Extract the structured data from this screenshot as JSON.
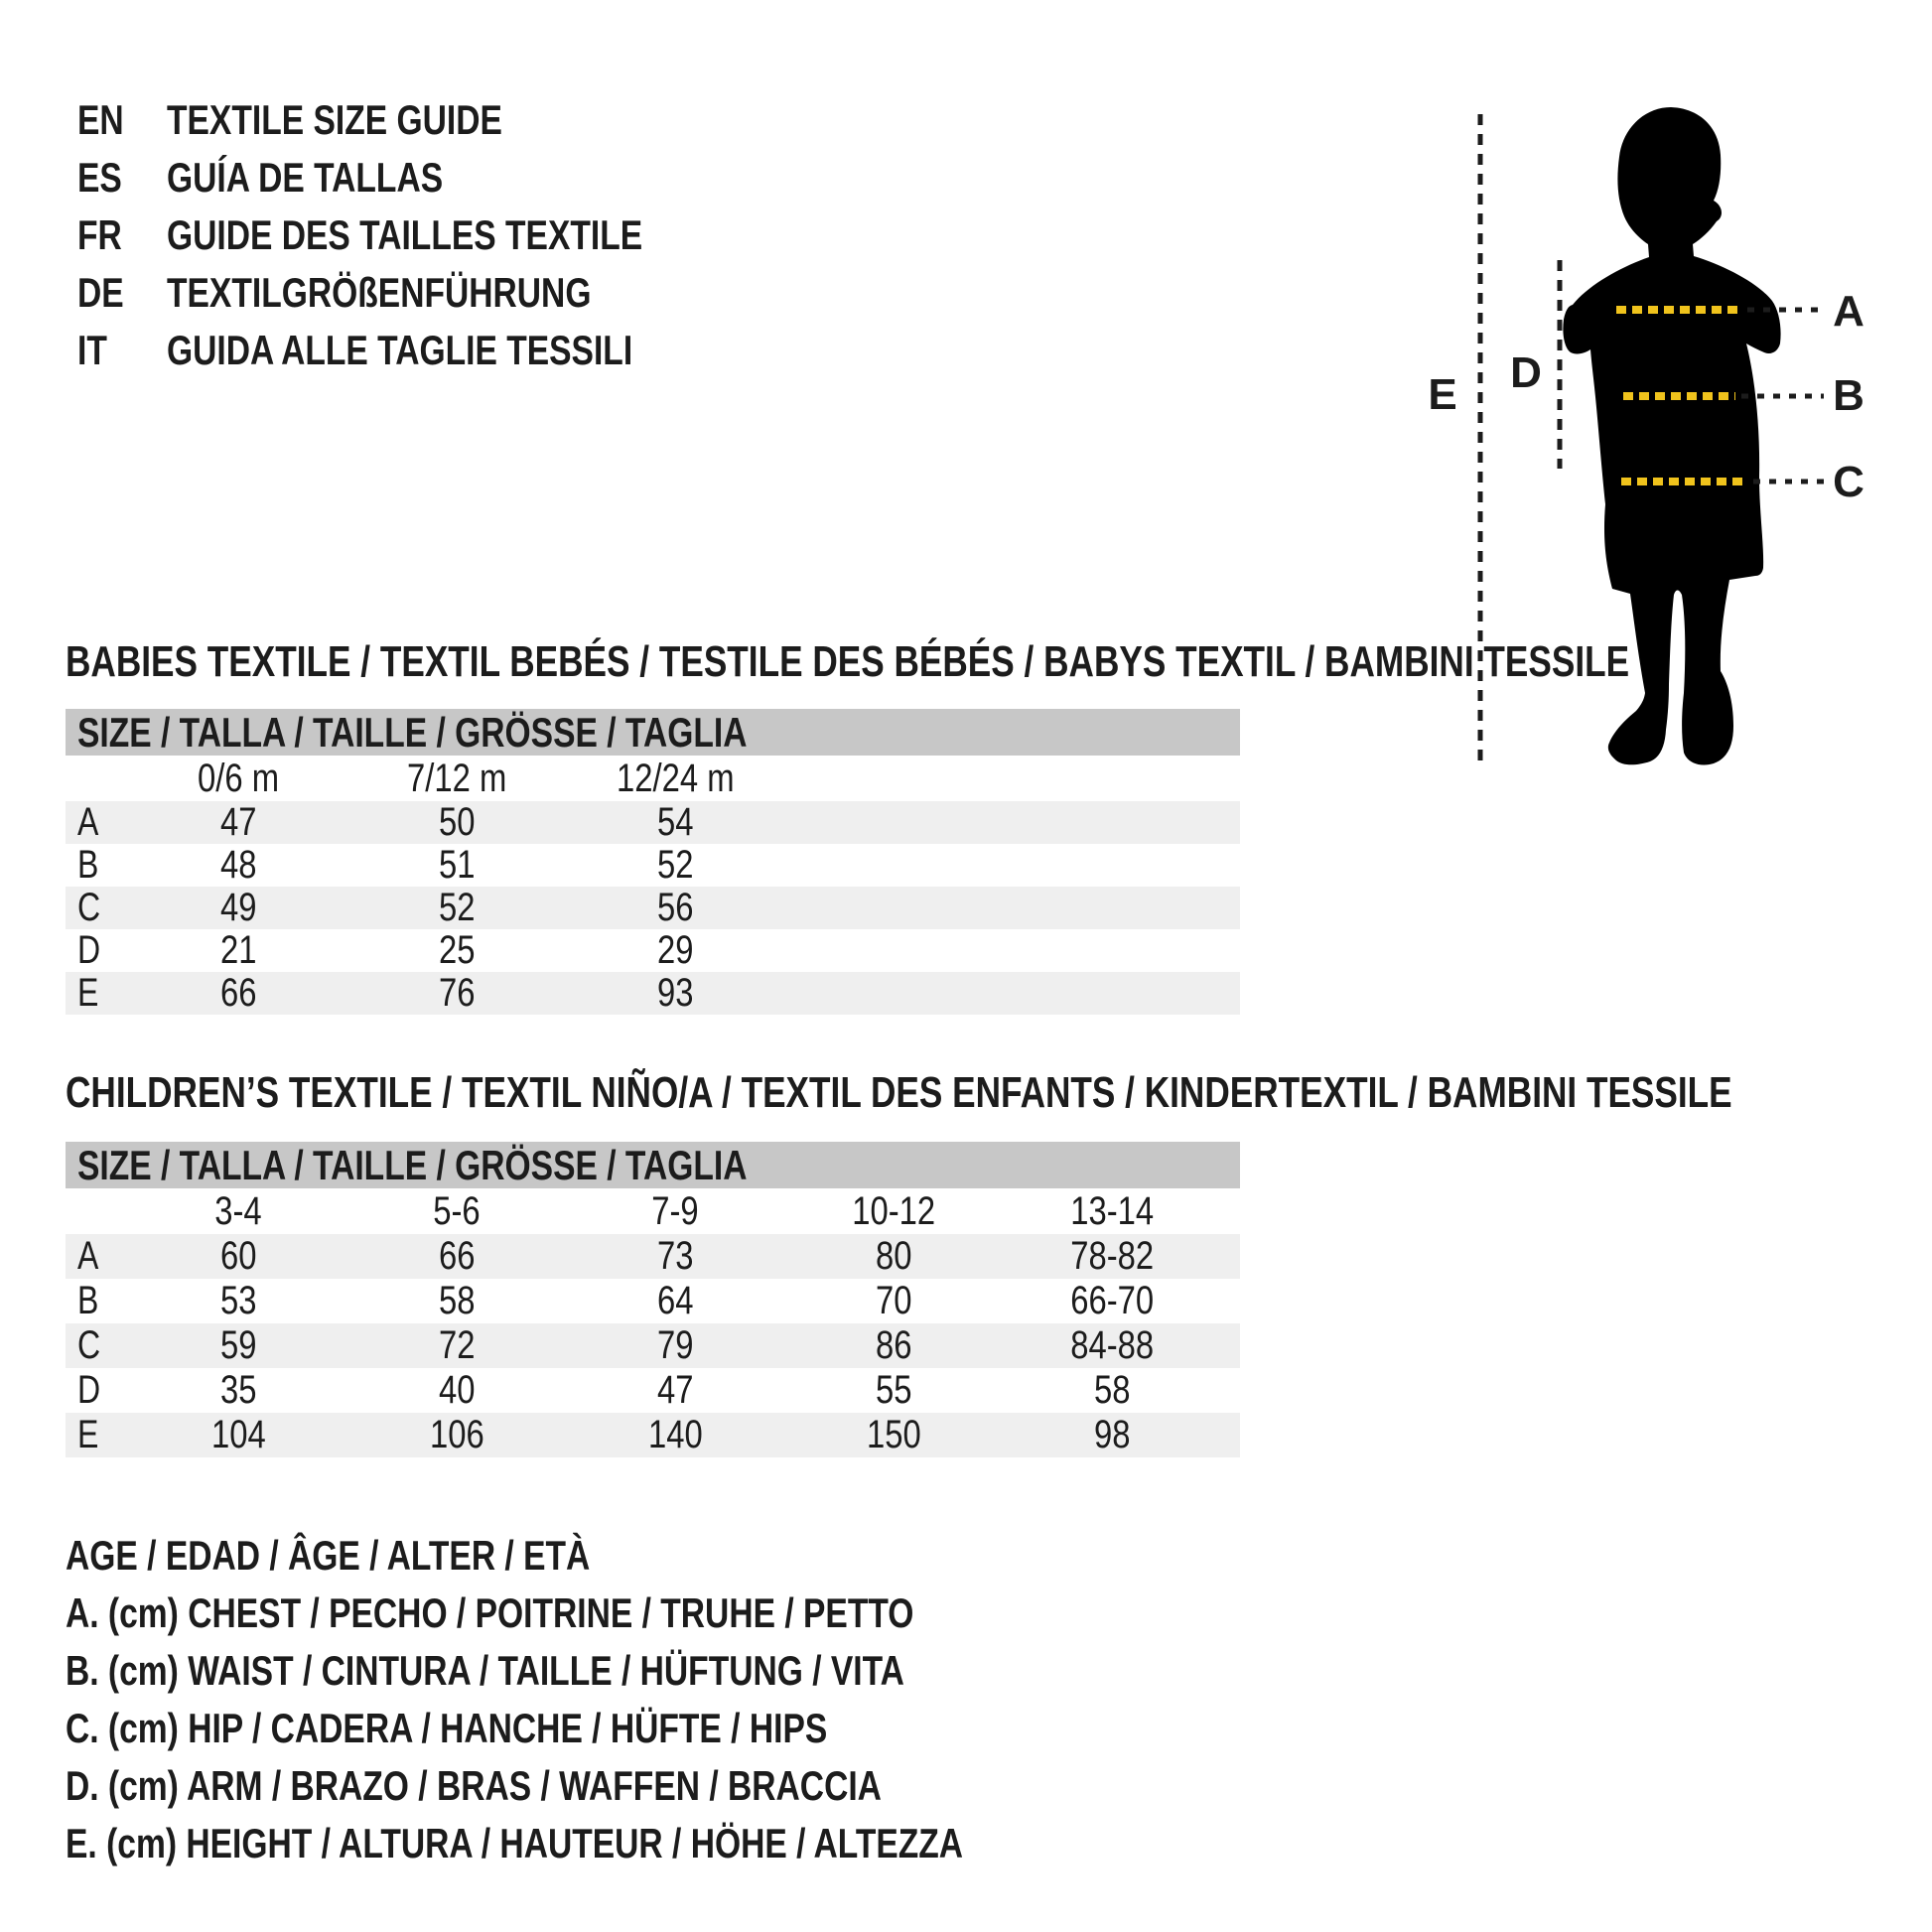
{
  "page": {
    "background": "#ffffff",
    "text_color": "#1c1c1c",
    "band_gray": "#c7c7c7",
    "stripe_gray": "#efefef",
    "measure_yellow": "#f0c31c",
    "silhouette_black": "#000000"
  },
  "languages": [
    {
      "code": "EN",
      "title": "TEXTILE SIZE GUIDE"
    },
    {
      "code": "ES",
      "title": "GUÍA DE TALLAS"
    },
    {
      "code": "FR",
      "title": "GUIDE DES TAILLES TEXTILE"
    },
    {
      "code": "DE",
      "title": "TEXTILGRÖßENFÜHRUNG"
    },
    {
      "code": "IT",
      "title": "GUIDA ALLE TAGLIE TESSILI"
    }
  ],
  "figure": {
    "labels": {
      "A": "A",
      "B": "B",
      "C": "C",
      "D": "D",
      "E": "E"
    }
  },
  "babies_table": {
    "section_title": "BABIES TEXTILE / TEXTIL BEBÉS / TESTILE DES BÉBÉS / BABYS TEXTIL / BAMBINI TESSILE",
    "size_header": "SIZE / TALLA / TAILLE / GRÖSSE / TAGLIA",
    "columns": [
      "0/6 m",
      "7/12 m",
      "12/24 m"
    ],
    "rows": [
      {
        "label": "A",
        "values": [
          "47",
          "50",
          "54"
        ]
      },
      {
        "label": "B",
        "values": [
          "48",
          "51",
          "52"
        ]
      },
      {
        "label": "C",
        "values": [
          "49",
          "52",
          "56"
        ]
      },
      {
        "label": "D",
        "values": [
          "21",
          "25",
          "29"
        ]
      },
      {
        "label": "E",
        "values": [
          "66",
          "76",
          "93"
        ]
      }
    ]
  },
  "children_table": {
    "section_title": "CHILDREN’S TEXTILE / TEXTIL NIÑO/A / TEXTIL DES ENFANTS / KINDERTEXTIL / BAMBINI TESSILE",
    "size_header": "SIZE / TALLA / TAILLE / GRÖSSE / TAGLIA",
    "columns": [
      "3-4",
      "5-6",
      "7-9",
      "10-12",
      "13-14"
    ],
    "rows": [
      {
        "label": "A",
        "values": [
          "60",
          "66",
          "73",
          "80",
          "78-82"
        ]
      },
      {
        "label": "B",
        "values": [
          "53",
          "58",
          "64",
          "70",
          "66-70"
        ]
      },
      {
        "label": "C",
        "values": [
          "59",
          "72",
          "79",
          "86",
          "84-88"
        ]
      },
      {
        "label": "D",
        "values": [
          "35",
          "40",
          "47",
          "55",
          "58"
        ]
      },
      {
        "label": "E",
        "values": [
          "104",
          "106",
          "140",
          "150",
          "98"
        ]
      }
    ]
  },
  "legend": [
    "AGE / EDAD / ÂGE / ALTER / ETÀ",
    "A. (cm) CHEST / PECHO / POITRINE / TRUHE / PETTO",
    "B. (cm) WAIST / CINTURA / TAILLE / HÜFTUNG / VITA",
    "C. (cm) HIP / CADERA / HANCHE / HÜFTE / HIPS",
    "D. (cm) ARM / BRAZO / BRAS / WAFFEN / BRACCIA",
    "E. (cm) HEIGHT / ALTURA / HAUTEUR / HÖHE / ALTEZZA"
  ]
}
